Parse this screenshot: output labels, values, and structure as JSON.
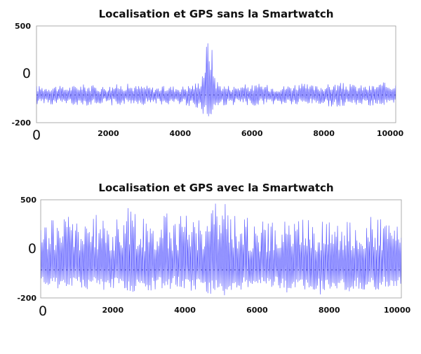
{
  "chart_data": [
    {
      "type": "line",
      "title": "Localisation et GPS sans la Smartwatch",
      "xlim": [
        0,
        10000
      ],
      "ylim": [
        -200,
        500
      ],
      "x_ticks": [
        "0",
        "2000",
        "4000",
        "6000",
        "8000",
        "10000"
      ],
      "y_ticks": [
        "500",
        "0",
        "-200"
      ],
      "grid": false,
      "series": [
        {
          "color": "#4a4aff",
          "x": [
            0,
            250,
            500,
            750,
            1000,
            1250,
            1500,
            1750,
            2000,
            2250,
            2500,
            2750,
            3000,
            3250,
            3500,
            3750,
            4000,
            4250,
            4500,
            4600,
            4700,
            4750,
            4800,
            4850,
            4900,
            4950,
            5000,
            5100,
            5250,
            5500,
            5750,
            6000,
            6250,
            6500,
            6750,
            7000,
            7250,
            7500,
            7750,
            8000,
            8250,
            8500,
            8750,
            9000,
            9250,
            9500,
            9750,
            10000
          ],
          "y_upper": [
            70,
            65,
            75,
            60,
            70,
            80,
            75,
            65,
            70,
            80,
            85,
            70,
            75,
            60,
            65,
            70,
            65,
            75,
            100,
            170,
            320,
            420,
            500,
            450,
            300,
            200,
            120,
            90,
            75,
            70,
            80,
            75,
            85,
            70,
            65,
            75,
            90,
            80,
            70,
            75,
            85,
            90,
            80,
            75,
            70,
            85,
            95,
            90
          ],
          "y_lower": [
            -70,
            -60,
            -80,
            -65,
            -75,
            -70,
            -85,
            -60,
            -75,
            -80,
            -70,
            -65,
            -75,
            -60,
            -70,
            -75,
            -65,
            -80,
            -100,
            -130,
            -170,
            -190,
            -200,
            -190,
            -150,
            -120,
            -100,
            -85,
            -80,
            -75,
            -70,
            -80,
            -75,
            -65,
            -80,
            -70,
            -85,
            -75,
            -70,
            -80,
            -90,
            -80,
            -75,
            -70,
            -80,
            -75,
            -90,
            -85
          ]
        }
      ]
    },
    {
      "type": "line",
      "title": "Localisation et GPS avec la Smartwatch",
      "xlim": [
        0,
        10000
      ],
      "ylim": [
        -200,
        500
      ],
      "x_ticks": [
        "0",
        "2000",
        "4000",
        "6000",
        "8000",
        "10000"
      ],
      "y_ticks": [
        "500",
        "0",
        "-200"
      ],
      "grid": false,
      "series": [
        {
          "color": "#4a4aff",
          "x": [
            0,
            250,
            500,
            750,
            1000,
            1250,
            1500,
            1750,
            2000,
            2250,
            2500,
            2750,
            3000,
            3250,
            3500,
            3750,
            4000,
            4250,
            4500,
            4750,
            5000,
            5250,
            5500,
            5750,
            6000,
            6250,
            6500,
            6750,
            7000,
            7250,
            7500,
            7750,
            8000,
            8250,
            8500,
            8750,
            9000,
            9250,
            9500,
            9750,
            10000
          ],
          "y_upper": [
            300,
            400,
            350,
            420,
            380,
            320,
            400,
            360,
            330,
            420,
            460,
            380,
            340,
            370,
            410,
            360,
            430,
            400,
            380,
            480,
            500,
            450,
            390,
            370,
            350,
            360,
            330,
            380,
            350,
            400,
            370,
            340,
            380,
            410,
            350,
            330,
            360,
            390,
            350,
            340,
            300
          ],
          "y_lower": [
            -100,
            -170,
            -140,
            -160,
            -120,
            -150,
            -110,
            -160,
            -130,
            -150,
            -170,
            -140,
            -160,
            -130,
            -170,
            -120,
            -150,
            -180,
            -140,
            -190,
            -200,
            -170,
            -150,
            -130,
            -160,
            -140,
            -120,
            -170,
            -150,
            -130,
            -160,
            -180,
            -150,
            -140,
            -170,
            -130,
            -160,
            -150,
            -130,
            -120,
            -110
          ]
        }
      ]
    }
  ]
}
